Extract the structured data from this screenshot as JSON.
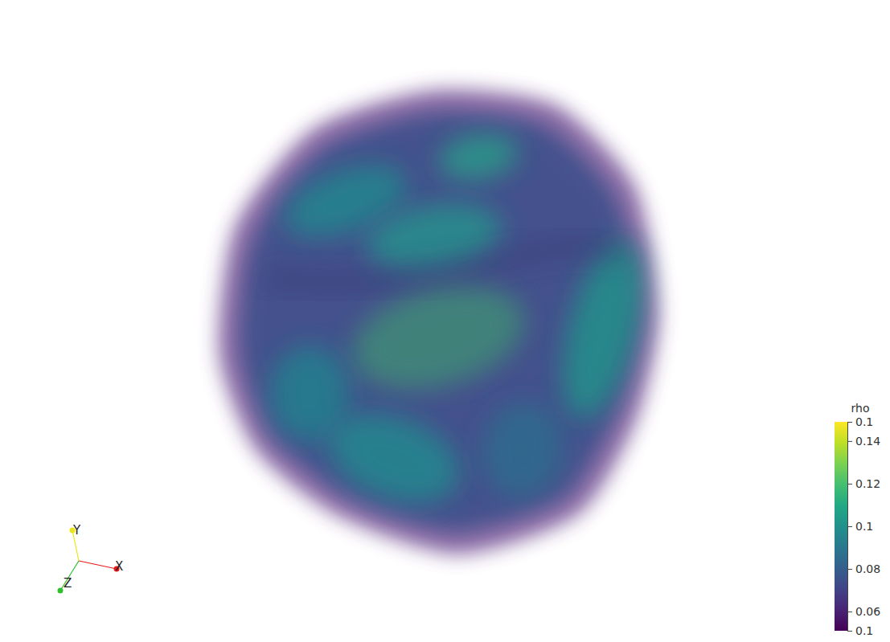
{
  "chart_data": {
    "type": "volume",
    "color": "viridis",
    "colorbar": {
      "title": "rho",
      "range": [
        0.051,
        0.149
      ],
      "ticks": [
        {
          "value": 0.051,
          "label": "0.1"
        },
        0.06,
        0.08,
        0.1,
        0.12,
        0.14,
        {
          "value": 0.149,
          "label": "0.1"
        }
      ]
    },
    "orientation_axes": {
      "labels": [
        "X",
        "Y",
        "Z"
      ]
    }
  }
}
